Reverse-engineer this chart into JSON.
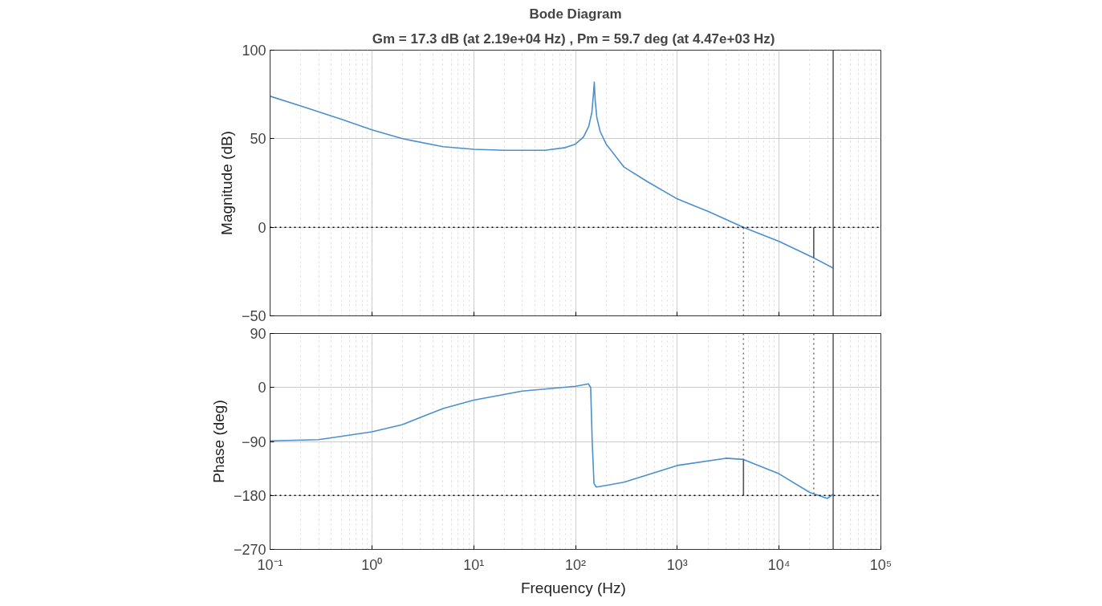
{
  "chart_data": [
    {
      "type": "line",
      "title": "Bode Diagram",
      "subtitle": "Gm = 17.3 dB (at 2.19e+04 Hz) ,  Pm = 59.7 deg (at 4.47e+03 Hz)",
      "ylabel": "Magnitude (dB)",
      "log": "x",
      "grid": true,
      "tick_labels": "y",
      "xlim": [
        0.1,
        100000
      ],
      "xticks": [
        {
          "value": 0.1,
          "label": null
        },
        {
          "value": 1,
          "label": null
        },
        {
          "value": 10,
          "label": null
        },
        {
          "value": 100,
          "label": null
        },
        {
          "value": 1000,
          "label": null
        },
        {
          "value": 10000,
          "label": null
        },
        {
          "value": 100000,
          "label": null
        }
      ],
      "ylim": [
        -50,
        100
      ],
      "yticks": [
        -50,
        0,
        50,
        100
      ],
      "series": [
        {
          "color": "#4a8fd0",
          "line_style": "solid",
          "x": [
            0.1,
            0.2,
            0.5,
            1,
            2,
            5,
            10,
            20,
            50,
            80,
            100,
            120,
            135,
            145,
            150,
            153,
            156,
            162,
            175,
            200,
            300,
            500,
            1000,
            2000,
            4470,
            10000,
            21900,
            34000
          ],
          "values": [
            74,
            68.5,
            61,
            55,
            50,
            45.5,
            44,
            43.5,
            43.5,
            45,
            47,
            51,
            57,
            65,
            75,
            82,
            72,
            62,
            54,
            47,
            34,
            26,
            16,
            9,
            0,
            -8,
            -17.3,
            -23
          ]
        },
        {
          "color": "#555555",
          "line_style": "solid",
          "x": [
            21900,
            21900
          ],
          "values": [
            0,
            -17.3
          ]
        },
        {
          "color": "#777777",
          "line_style": "dotted",
          "x": [
            4470,
            4470
          ],
          "values": [
            -50,
            0
          ]
        },
        {
          "color": "#777777",
          "line_style": "dotted",
          "x": [
            21900,
            21900
          ],
          "values": [
            -50,
            -17.3
          ]
        }
      ],
      "ref_lines": [
        {
          "axis": "y",
          "value": 0,
          "color": "#000000",
          "line_style": "dotted"
        },
        {
          "axis": "x",
          "value": 34000,
          "color": "#555555",
          "line_style": "solid"
        }
      ]
    },
    {
      "type": "line",
      "xlabel": "Frequency  (Hz)",
      "ylabel": "Phase (deg)",
      "log": "x",
      "grid": true,
      "xlim": [
        0.1,
        100000
      ],
      "xticks": [
        {
          "value": 0.1,
          "label": "10⁻¹"
        },
        {
          "value": 1,
          "label": "10⁰"
        },
        {
          "value": 10,
          "label": "10¹"
        },
        {
          "value": 100,
          "label": "10²"
        },
        {
          "value": 1000,
          "label": "10³"
        },
        {
          "value": 10000,
          "label": "10⁴"
        },
        {
          "value": 100000,
          "label": "10⁵"
        }
      ],
      "ylim": [
        -270,
        90
      ],
      "yticks": [
        -270,
        -180,
        -90,
        0,
        90
      ],
      "series": [
        {
          "color": "#4a8fd0",
          "line_style": "solid",
          "x": [
            0.1,
            0.3,
            1,
            2,
            3,
            5,
            10,
            30,
            100,
            134,
            141,
            146,
            152,
            160,
            175,
            300,
            1000,
            3000,
            4470,
            10000,
            20000,
            29700,
            34000
          ],
          "values": [
            -89,
            -87,
            -74,
            -62,
            -50,
            -35,
            -21,
            -6,
            2,
            6,
            0,
            -90,
            -160,
            -166,
            -165,
            -158,
            -130,
            -118,
            -120,
            -144,
            -175,
            -185,
            -178
          ]
        },
        {
          "color": "#555555",
          "line_style": "solid",
          "x": [
            4470,
            4470
          ],
          "values": [
            -180,
            -120
          ]
        },
        {
          "color": "#777777",
          "line_style": "dotted",
          "x": [
            4470,
            4470
          ],
          "values": [
            90,
            -120
          ]
        },
        {
          "color": "#777777",
          "line_style": "dotted",
          "x": [
            21900,
            21900
          ],
          "values": [
            90,
            -180
          ]
        }
      ],
      "ref_lines": [
        {
          "axis": "y",
          "value": -180,
          "color": "#000000",
          "line_style": "dotted"
        },
        {
          "axis": "x",
          "value": 34000,
          "color": "#555555",
          "line_style": "solid"
        }
      ]
    }
  ]
}
